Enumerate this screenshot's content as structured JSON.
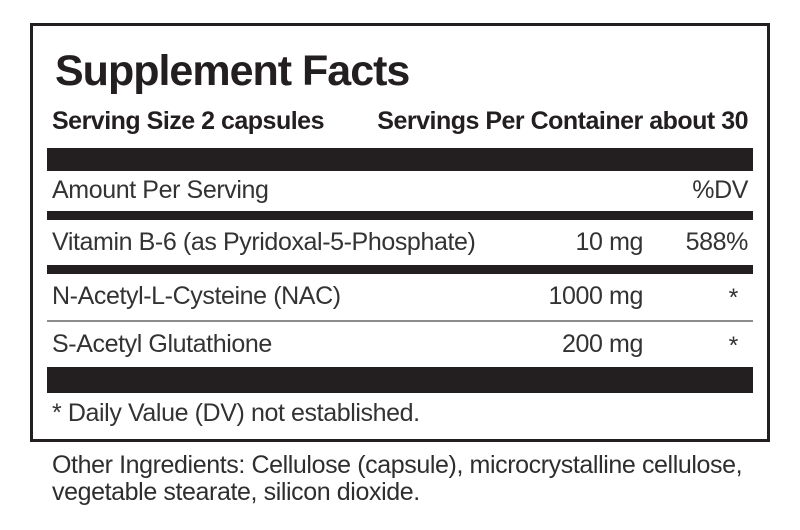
{
  "panel": {
    "title": "Supplement Facts",
    "serving_size": "Serving Size 2 capsules",
    "servings_per_container": "Servings Per Container about 30",
    "header": {
      "amount_label": "Amount Per Serving",
      "dv_label": "%DV"
    },
    "rows": [
      {
        "name": "Vitamin B-6 (as Pyridoxal-5-Phosphate)",
        "amount": "10 mg",
        "dv": "588%"
      },
      {
        "name": "N-Acetyl-L-Cysteine (NAC)",
        "amount": "1000 mg",
        "dv": "*"
      },
      {
        "name": "S-Acetyl Glutathione",
        "amount": "200 mg",
        "dv": "*"
      }
    ],
    "footnote": "* Daily Value (DV) not established."
  },
  "other_ingredients": {
    "line1": "Other Ingredients: Cellulose (capsule), microcrystalline cellulose,",
    "line2": "vegetable stearate, silicon dioxide."
  },
  "colors": {
    "ink": "#231f20",
    "divider_gray": "#8c8c8c",
    "body_text": "#333333"
  }
}
